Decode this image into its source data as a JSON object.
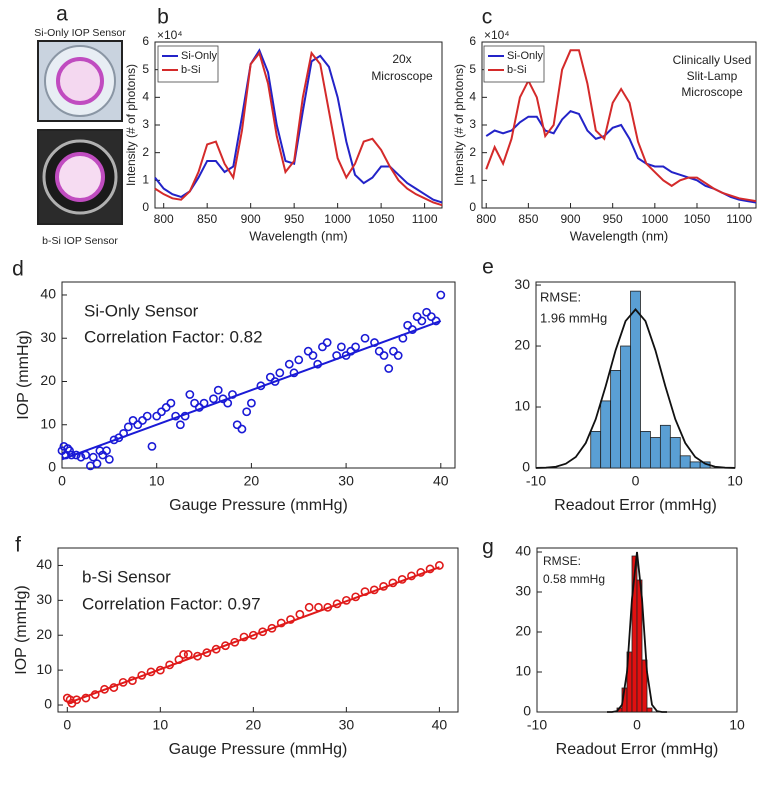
{
  "photos": {
    "panel": "a",
    "labels": [
      "Si-Only IOP Sensor",
      "b-Si IOP Sensor"
    ]
  },
  "chart_data": [
    {
      "type": "line",
      "panel": "b",
      "xlabel": "Wavelength (nm)",
      "ylabel": "Intensity (# of photons)",
      "y_scale_label": "×10⁴",
      "annotations": [
        "20x",
        "Microscope"
      ],
      "x": [
        790,
        800,
        810,
        820,
        830,
        840,
        850,
        860,
        870,
        880,
        890,
        900,
        910,
        920,
        930,
        940,
        950,
        960,
        970,
        980,
        990,
        1000,
        1010,
        1020,
        1030,
        1040,
        1050,
        1060,
        1070,
        1080,
        1090,
        1100,
        1110,
        1120
      ],
      "series": [
        {
          "name": "Si-Only",
          "color": "#2323c8",
          "values": [
            1.1,
            0.7,
            0.5,
            0.4,
            0.6,
            1.1,
            1.7,
            1.7,
            1.3,
            1.5,
            3.3,
            5.2,
            5.7,
            4.9,
            3.0,
            1.7,
            1.6,
            3.5,
            5.3,
            5.5,
            5.1,
            4.0,
            2.4,
            1.2,
            0.9,
            1.1,
            1.5,
            1.5,
            1.2,
            0.9,
            0.7,
            0.5,
            0.3,
            0.2
          ]
        },
        {
          "name": "b-Si",
          "color": "#d42a2a",
          "values": [
            0.7,
            0.5,
            0.35,
            0.3,
            0.6,
            1.3,
            2.3,
            2.4,
            1.6,
            1.1,
            2.8,
            5.2,
            5.6,
            4.5,
            2.6,
            1.3,
            1.7,
            4.0,
            5.6,
            5.2,
            3.5,
            1.8,
            1.1,
            1.6,
            2.4,
            2.5,
            2.1,
            1.5,
            1.0,
            0.7,
            0.5,
            0.35,
            0.2,
            0.1
          ]
        }
      ],
      "xlim": [
        790,
        1120
      ],
      "xticks": [
        800,
        850,
        900,
        950,
        1000,
        1050,
        1100
      ],
      "ylim": [
        0,
        6
      ],
      "yticks": [
        0,
        1,
        2,
        3,
        4,
        5,
        6
      ],
      "legend": "upper left"
    },
    {
      "type": "line",
      "panel": "c",
      "xlabel": "Wavelength (nm)",
      "ylabel": "Intensity (# of photons)",
      "y_scale_label": "×10⁴",
      "annotations": [
        "Clinically Used",
        "Slit-Lamp",
        "Microscope"
      ],
      "x": [
        800,
        810,
        820,
        830,
        840,
        850,
        860,
        870,
        880,
        890,
        900,
        910,
        920,
        930,
        940,
        950,
        960,
        970,
        980,
        990,
        1000,
        1010,
        1020,
        1030,
        1040,
        1050,
        1060,
        1070,
        1080,
        1090,
        1100,
        1110,
        1120
      ],
      "series": [
        {
          "name": "Si-Only",
          "color": "#2323c8",
          "values": [
            2.6,
            2.8,
            2.7,
            2.8,
            3.1,
            3.3,
            3.3,
            2.8,
            2.7,
            3.2,
            3.5,
            3.4,
            2.8,
            2.5,
            2.6,
            2.9,
            3.0,
            2.5,
            1.8,
            1.6,
            1.5,
            1.5,
            1.3,
            1.2,
            1.1,
            1.0,
            0.8,
            0.7,
            0.55,
            0.4,
            0.3,
            0.25,
            0.2
          ]
        },
        {
          "name": "b-Si",
          "color": "#d42a2a",
          "values": [
            1.4,
            2.2,
            1.6,
            2.5,
            4.0,
            4.6,
            4.0,
            2.6,
            3.0,
            5.0,
            5.7,
            5.7,
            4.5,
            2.8,
            2.5,
            3.8,
            4.3,
            3.8,
            2.4,
            1.6,
            1.3,
            1.0,
            0.8,
            1.0,
            1.1,
            1.1,
            0.9,
            0.7,
            0.55,
            0.45,
            0.35,
            0.3,
            0.25
          ]
        }
      ],
      "xlim": [
        795,
        1120
      ],
      "xticks": [
        800,
        850,
        900,
        950,
        1000,
        1050,
        1100
      ],
      "ylim": [
        0,
        6
      ],
      "yticks": [
        0,
        1,
        2,
        3,
        4,
        5,
        6
      ],
      "legend": "upper left"
    },
    {
      "type": "scatter",
      "panel": "d",
      "xlabel": "Gauge Pressure (mmHg)",
      "ylabel": "IOP (mmHg)",
      "annotations": [
        "Si-Only Sensor",
        "Correlation Factor: 0.82"
      ],
      "color": "#1a1ad6",
      "x": [
        0,
        0.2,
        0.4,
        0.6,
        0.8,
        1,
        1.5,
        2,
        2.5,
        3,
        3.3,
        3.7,
        4,
        4.3,
        4.7,
        5,
        5.5,
        6,
        6.5,
        7,
        7.5,
        8,
        8.5,
        9,
        9.5,
        10,
        10.5,
        11,
        11.5,
        12,
        12.5,
        13,
        13.5,
        14,
        14.5,
        15,
        16,
        16.5,
        17,
        17.5,
        18,
        18.5,
        19,
        19.5,
        20,
        21,
        22,
        22.5,
        23,
        24,
        24.5,
        25,
        26,
        26.5,
        27,
        27.5,
        28,
        29,
        29.5,
        30,
        30.5,
        31,
        32,
        33,
        33.5,
        34,
        34.5,
        35,
        35.5,
        36,
        36.5,
        37,
        37.5,
        38,
        38.5,
        39,
        39.5,
        40
      ],
      "values": [
        4,
        5,
        3,
        4.5,
        4,
        3,
        3,
        2.5,
        3,
        0.5,
        2.5,
        1,
        4,
        3,
        4,
        2,
        6.5,
        7,
        8,
        9.5,
        11,
        10,
        11,
        12,
        5,
        12,
        13,
        14,
        15,
        12,
        10,
        12,
        17,
        15,
        14,
        15,
        16,
        18,
        16,
        15,
        17,
        10,
        9,
        13,
        15,
        19,
        21,
        20,
        22,
        24,
        22,
        25,
        27,
        26,
        24,
        28,
        29,
        26,
        28,
        26,
        27,
        28,
        30,
        29,
        27,
        26,
        23,
        27,
        26,
        30,
        33,
        32,
        35,
        34,
        36,
        35,
        34,
        40
      ],
      "fit_x": [
        0,
        40
      ],
      "fit_values": [
        2,
        34
      ],
      "xlim": [
        0,
        41.5
      ],
      "xticks": [
        0,
        10,
        20,
        30,
        40
      ],
      "ylim": [
        0,
        43
      ],
      "yticks": [
        0,
        10,
        20,
        30,
        40
      ]
    },
    {
      "type": "histogram",
      "panel": "e",
      "xlabel": "Readout Error (mmHg)",
      "annotations": [
        "RMSE:",
        "1.96 mmHg"
      ],
      "color": "#5a9fd4",
      "bins": [
        -4.5,
        -3.5,
        -2.5,
        -1.5,
        -0.5,
        0.5,
        1.5,
        2.5,
        3.5,
        4.5,
        5.5,
        6.5,
        7.5
      ],
      "values": [
        6,
        11,
        16,
        20,
        29,
        6,
        5,
        7,
        5,
        2,
        1,
        1
      ],
      "fit_x": [
        -10,
        -9,
        -8,
        -7,
        -6,
        -5,
        -4,
        -3,
        -2,
        -1,
        0,
        1,
        2,
        3,
        4,
        5,
        6,
        7,
        8,
        9,
        10
      ],
      "fit_values": [
        0.01,
        0.05,
        0.2,
        0.7,
        1.8,
        4.1,
        8.0,
        13.4,
        19.3,
        24.1,
        26,
        24.1,
        19.3,
        13.4,
        8.0,
        4.1,
        1.8,
        0.7,
        0.2,
        0.05,
        0.01
      ],
      "xlim": [
        -10,
        10
      ],
      "xticks": [
        -10,
        0,
        10
      ],
      "ylim": [
        0,
        30.5
      ],
      "yticks": [
        0,
        10,
        20,
        30
      ]
    },
    {
      "type": "scatter",
      "panel": "f",
      "xlabel": "Gauge Pressure (mmHg)",
      "ylabel": "IOP (mmHg)",
      "annotations": [
        "b-Si Sensor",
        "Correlation Factor: 0.97"
      ],
      "color": "#e01a1a",
      "x": [
        0,
        0.3,
        0.5,
        1,
        2,
        3,
        4,
        5,
        6,
        7,
        8,
        9,
        10,
        11,
        12,
        12.5,
        13,
        14,
        15,
        16,
        17,
        18,
        19,
        20,
        21,
        22,
        23,
        24,
        25,
        26,
        27,
        28,
        29,
        30,
        31,
        32,
        33,
        34,
        35,
        36,
        37,
        38,
        39,
        40
      ],
      "values": [
        2,
        1.5,
        0.5,
        1.5,
        2,
        3,
        4.5,
        5,
        6.5,
        7,
        8.5,
        9.5,
        10,
        11.5,
        13,
        14.5,
        14.5,
        14,
        15,
        16,
        17,
        18,
        19.5,
        20,
        21,
        22,
        23.5,
        24.5,
        26,
        28,
        28,
        28,
        29,
        30,
        31,
        32.5,
        33,
        34,
        35,
        36,
        37,
        38,
        39,
        40
      ],
      "fit_x": [
        0,
        40
      ],
      "fit_values": [
        0.5,
        39.5
      ],
      "xlim": [
        -1,
        42
      ],
      "xticks": [
        0,
        10,
        20,
        30,
        40
      ],
      "ylim": [
        -2,
        45
      ],
      "yticks": [
        0,
        10,
        20,
        30,
        40
      ]
    },
    {
      "type": "histogram",
      "panel": "g",
      "xlabel": "Readout Error (mmHg)",
      "annotations": [
        "RMSE:",
        "0.58 mmHg"
      ],
      "color": "#e01010",
      "bins": [
        -2,
        -1.5,
        -1,
        -0.5,
        0,
        0.5,
        1,
        1.5
      ],
      "values": [
        1,
        6,
        15,
        39,
        33,
        13,
        1
      ],
      "fit_x": [
        -3,
        -2.5,
        -2,
        -1.5,
        -1,
        -0.5,
        0,
        0.5,
        1,
        1.5,
        2,
        2.5,
        3
      ],
      "fit_values": [
        0,
        0,
        0.2,
        1.8,
        10.0,
        28.3,
        40,
        28.3,
        10.0,
        1.8,
        0.2,
        0,
        0
      ],
      "xlim": [
        -10,
        10
      ],
      "xticks": [
        -10,
        0,
        10
      ],
      "ylim": [
        0,
        41
      ],
      "yticks": [
        0,
        10,
        20,
        30,
        40
      ]
    }
  ]
}
